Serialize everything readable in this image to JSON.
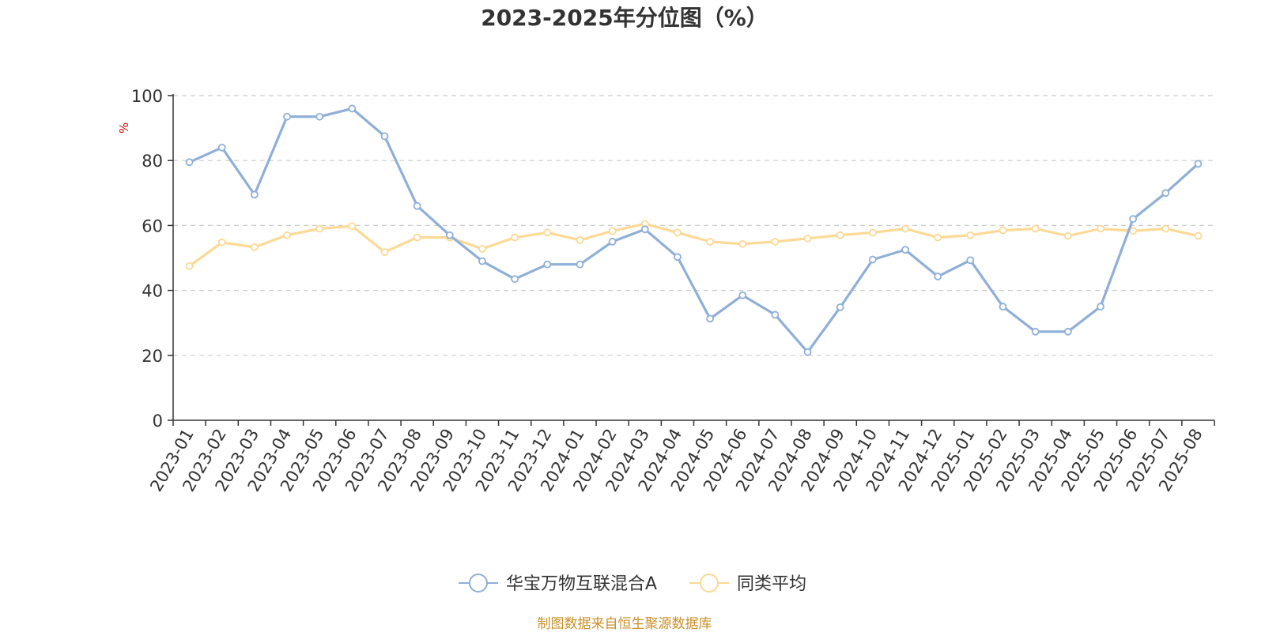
{
  "chart_data": {
    "type": "line",
    "title": "2023-2025年分位图（%）",
    "ylabel": "%",
    "xlabel": "",
    "ylim": [
      0,
      100
    ],
    "yticks": [
      0,
      20,
      40,
      60,
      80,
      100
    ],
    "grid": true,
    "legend_position": "bottom-center",
    "categories": [
      "2023-01",
      "2023-02",
      "2023-03",
      "2023-04",
      "2023-05",
      "2023-06",
      "2023-07",
      "2023-08",
      "2023-09",
      "2023-10",
      "2023-11",
      "2023-12",
      "2024-01",
      "2024-02",
      "2024-03",
      "2024-04",
      "2024-05",
      "2024-06",
      "2024-07",
      "2024-08",
      "2024-09",
      "2024-10",
      "2024-11",
      "2024-12",
      "2025-01",
      "2025-02",
      "2025-03",
      "2025-04",
      "2025-05",
      "2025-06",
      "2025-07",
      "2025-08"
    ],
    "series": [
      {
        "name": "华宝万物互联混合A",
        "color": "#8fafd8",
        "values": [
          79.5,
          84.0,
          69.5,
          93.5,
          93.5,
          96.0,
          87.5,
          66.0,
          57.0,
          49.0,
          43.5,
          48.0,
          48.0,
          55.0,
          58.8,
          50.3,
          31.3,
          38.5,
          32.5,
          21.0,
          34.8,
          49.5,
          52.5,
          44.3,
          49.3,
          35.0,
          27.3,
          27.3,
          35.0,
          62.0,
          70.0,
          79.0
        ]
      },
      {
        "name": "同类平均",
        "color": "#fcd995",
        "values": [
          47.5,
          54.8,
          53.3,
          57.0,
          59.0,
          59.8,
          51.8,
          56.3,
          56.3,
          52.8,
          56.3,
          57.8,
          55.5,
          58.3,
          60.5,
          57.8,
          55.0,
          54.3,
          55.0,
          56.0,
          57.0,
          57.8,
          59.0,
          56.3,
          57.0,
          58.5,
          59.0,
          56.8,
          59.0,
          58.3,
          59.0,
          56.8
        ]
      }
    ]
  },
  "source_text": "制图数据来自恒生聚源数据库"
}
